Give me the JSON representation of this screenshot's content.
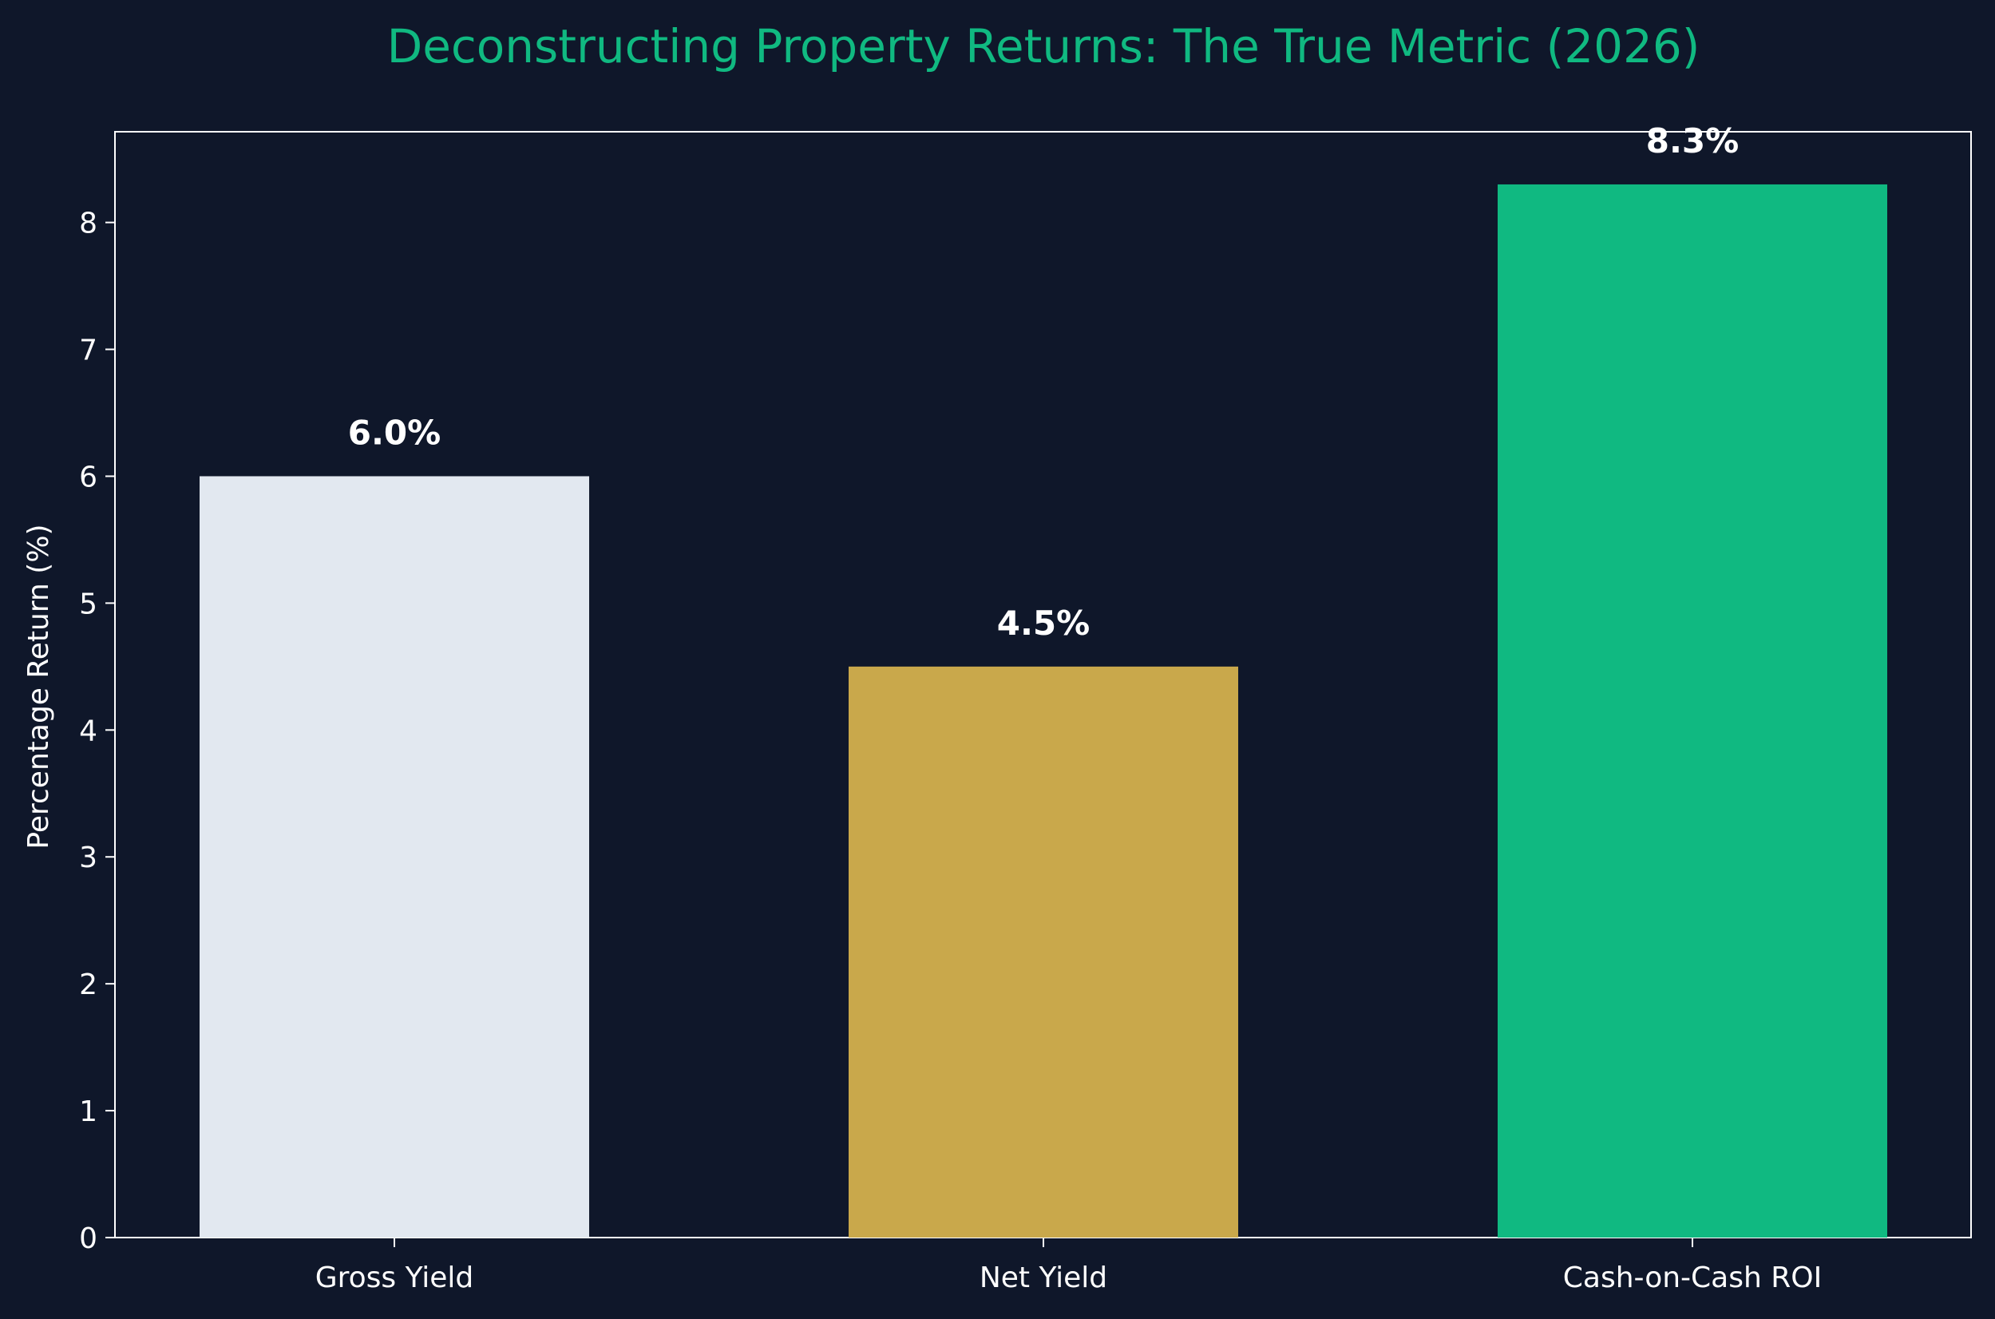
{
  "chart_data": {
    "type": "bar",
    "title": "Deconstructing Property Returns: The True Metric (2026)",
    "xlabel": "",
    "ylabel": "Percentage Return (%)",
    "categories": [
      "Gross Yield",
      "Net Yield",
      "Cash-on-Cash ROI"
    ],
    "values": [
      6.0,
      4.5,
      8.3
    ],
    "value_labels": [
      "6.0%",
      "4.5%",
      "8.3%"
    ],
    "bar_colors": [
      "#e2e8f0",
      "#c9a84b",
      "#10b981"
    ],
    "yticks": [
      0,
      1,
      2,
      3,
      4,
      5,
      6,
      7,
      8
    ],
    "ylim": [
      0,
      8.715
    ],
    "grid": false,
    "legend": "none"
  },
  "colors": {
    "background": "#0f172a",
    "title": "#10b981",
    "text": "#ffffff",
    "axes": "#ffffff"
  }
}
